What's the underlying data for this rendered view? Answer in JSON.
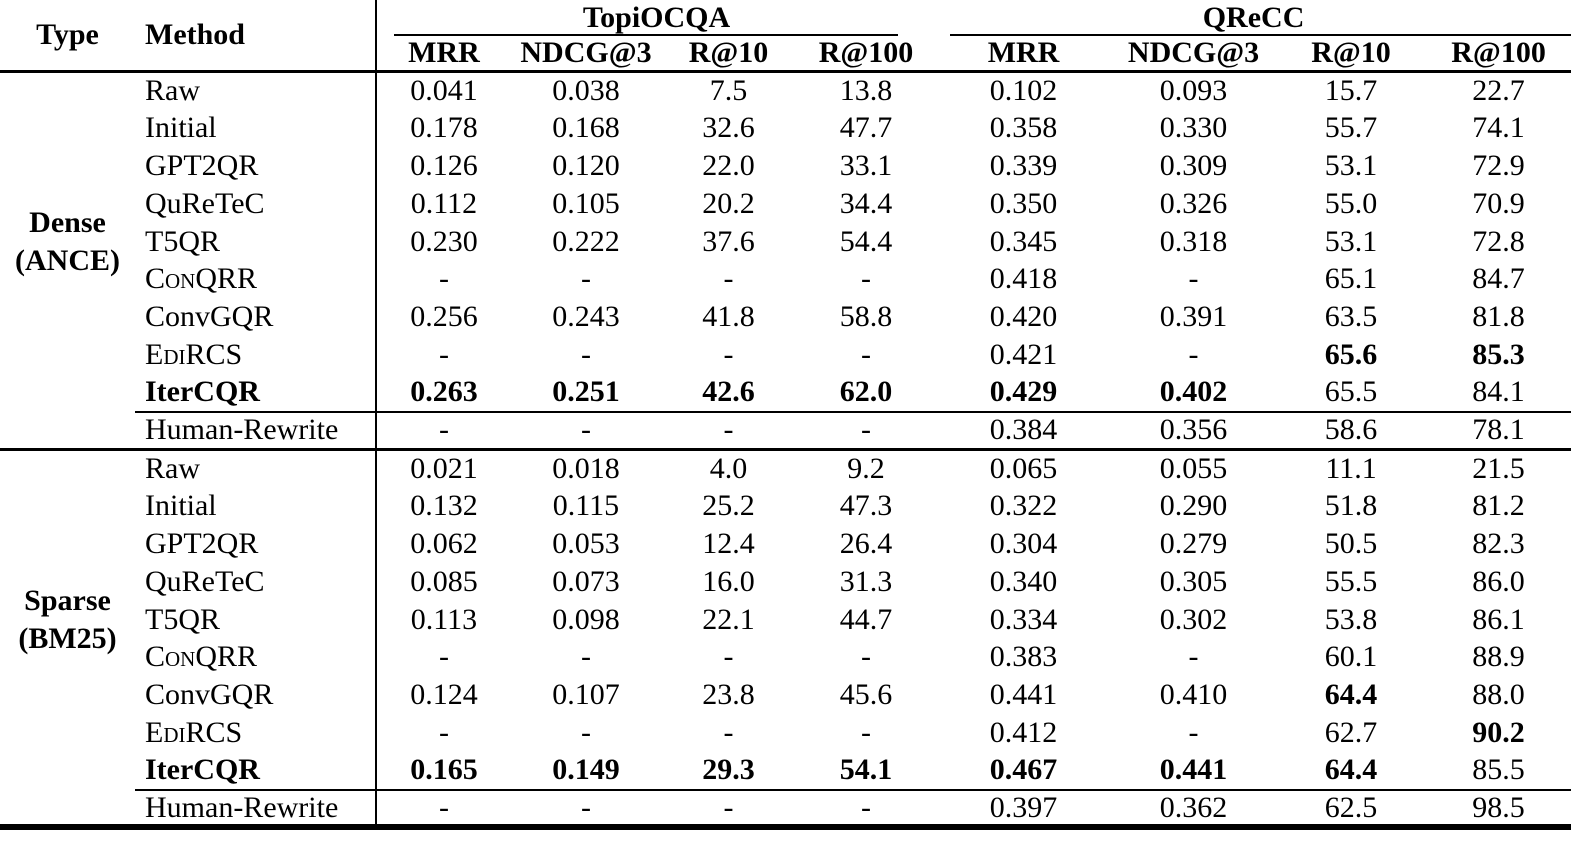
{
  "colors": {
    "text": "#000000",
    "rule": "#000000",
    "background": "#ffffff"
  },
  "table": {
    "header": {
      "type_label": "Type",
      "method_label": "Method"
    },
    "groups": [
      {
        "name": "TopiOCQA",
        "metrics": [
          "MRR",
          "NDCG@3",
          "R@10",
          "R@100"
        ]
      },
      {
        "name": "QReCC",
        "metrics": [
          "MRR",
          "NDCG@3",
          "R@10",
          "R@100"
        ]
      }
    ],
    "sections": [
      {
        "type_lines": [
          "Dense",
          "(ANCE)"
        ],
        "rows": [
          {
            "method": "Raw",
            "values": [
              "0.041",
              "0.038",
              "7.5",
              "13.8",
              "0.102",
              "0.093",
              "15.7",
              "22.7"
            ]
          },
          {
            "method": "Initial",
            "values": [
              "0.178",
              "0.168",
              "32.6",
              "47.7",
              "0.358",
              "0.330",
              "55.7",
              "74.1"
            ]
          },
          {
            "method": "GPT2QR",
            "values": [
              "0.126",
              "0.120",
              "22.0",
              "33.1",
              "0.339",
              "0.309",
              "53.1",
              "72.9"
            ]
          },
          {
            "method": "QuReTeC",
            "values": [
              "0.112",
              "0.105",
              "20.2",
              "34.4",
              "0.350",
              "0.326",
              "55.0",
              "70.9"
            ]
          },
          {
            "method": "T5QR",
            "values": [
              "0.230",
              "0.222",
              "37.6",
              "54.4",
              "0.345",
              "0.318",
              "53.1",
              "72.8"
            ]
          },
          {
            "method": "ConQRR",
            "smallcaps": true,
            "values": [
              "-",
              "-",
              "-",
              "-",
              "0.418",
              "-",
              "65.1",
              "84.7"
            ]
          },
          {
            "method": "ConvGQR",
            "values": [
              "0.256",
              "0.243",
              "41.8",
              "58.8",
              "0.420",
              "0.391",
              "63.5",
              "81.8"
            ]
          },
          {
            "method": "EdiRCS",
            "smallcaps": true,
            "values": [
              "-",
              "-",
              "-",
              "-",
              "0.421",
              "-",
              "65.6",
              "85.3"
            ],
            "bold_cells": [
              6,
              7
            ]
          },
          {
            "method": "IterCQR",
            "bold_method": true,
            "values": [
              "0.263",
              "0.251",
              "42.6",
              "62.0",
              "0.429",
              "0.402",
              "65.5",
              "84.1"
            ],
            "bold_cells": [
              0,
              1,
              2,
              3,
              4,
              5
            ]
          },
          {
            "method": "Human-Rewrite",
            "rule_above": true,
            "values": [
              "-",
              "-",
              "-",
              "-",
              "0.384",
              "0.356",
              "58.6",
              "78.1"
            ]
          }
        ]
      },
      {
        "type_lines": [
          "Sparse",
          "(BM25)"
        ],
        "rows": [
          {
            "method": "Raw",
            "values": [
              "0.021",
              "0.018",
              "4.0",
              "9.2",
              "0.065",
              "0.055",
              "11.1",
              "21.5"
            ]
          },
          {
            "method": "Initial",
            "values": [
              "0.132",
              "0.115",
              "25.2",
              "47.3",
              "0.322",
              "0.290",
              "51.8",
              "81.2"
            ]
          },
          {
            "method": "GPT2QR",
            "values": [
              "0.062",
              "0.053",
              "12.4",
              "26.4",
              "0.304",
              "0.279",
              "50.5",
              "82.3"
            ]
          },
          {
            "method": "QuReTeC",
            "values": [
              "0.085",
              "0.073",
              "16.0",
              "31.3",
              "0.340",
              "0.305",
              "55.5",
              "86.0"
            ]
          },
          {
            "method": "T5QR",
            "values": [
              "0.113",
              "0.098",
              "22.1",
              "44.7",
              "0.334",
              "0.302",
              "53.8",
              "86.1"
            ]
          },
          {
            "method": "ConQRR",
            "smallcaps": true,
            "values": [
              "-",
              "-",
              "-",
              "-",
              "0.383",
              "-",
              "60.1",
              "88.9"
            ]
          },
          {
            "method": "ConvGQR",
            "values": [
              "0.124",
              "0.107",
              "23.8",
              "45.6",
              "0.441",
              "0.410",
              "64.4",
              "88.0"
            ],
            "bold_cells": [
              6
            ]
          },
          {
            "method": "EdiRCS",
            "smallcaps": true,
            "values": [
              "-",
              "-",
              "-",
              "-",
              "0.412",
              "-",
              "62.7",
              "90.2"
            ],
            "bold_cells": [
              7
            ]
          },
          {
            "method": "IterCQR",
            "bold_method": true,
            "values": [
              "0.165",
              "0.149",
              "29.3",
              "54.1",
              "0.467",
              "0.441",
              "64.4",
              "85.5"
            ],
            "bold_cells": [
              0,
              1,
              2,
              3,
              4,
              5,
              6
            ]
          },
          {
            "method": "Human-Rewrite",
            "rule_above": true,
            "values": [
              "-",
              "-",
              "-",
              "-",
              "0.397",
              "0.362",
              "62.5",
              "98.5"
            ]
          }
        ]
      }
    ]
  }
}
